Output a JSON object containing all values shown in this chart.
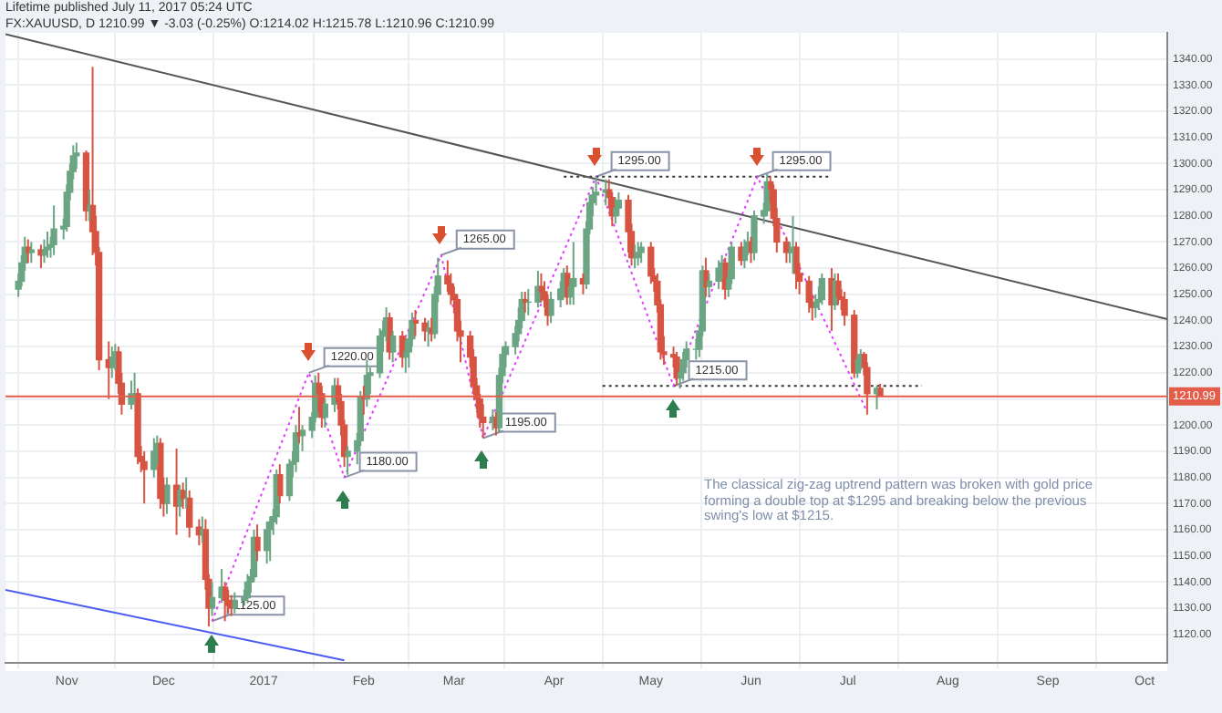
{
  "chart_data": {
    "type": "candlestick",
    "title": "Lifetime published July 11, 2017 05:24 UTC",
    "subtitle": "FX:XAUUSD, D  1210.99 ▼ -3.03 (-0.25%) O:1214.02 H:1215.78 L:1210.96 C:1210.99",
    "colors": [
      "#6ba583",
      "#6ba583",
      "#6ba583",
      "#d75442",
      "#6ba583",
      "#d75442",
      "#6ba583",
      "#6ba583",
      "#6ba583",
      "#6ba583",
      "#6ba583",
      "#6ba583",
      "#6ba583",
      "#6ba583",
      "#6ba583",
      "#d75442",
      "#6ba583",
      "#d75442",
      "#d75442",
      "#d75442",
      "#d75442",
      "#6ba583",
      "#6ba583",
      "#d75442",
      "#d75442",
      "#6ba583",
      "#6ba583",
      "#d75442",
      "#d75442",
      "#d75442",
      "#6ba583",
      "#6ba583",
      "#d75442",
      "#d75442",
      "#6ba583",
      "#d75442",
      "#6ba583",
      "#d75442",
      "#6ba583",
      "#d75442",
      "#d75442",
      "#6ba583",
      "#d75442",
      "#d75442",
      "#6ba583",
      "#6ba583",
      "#d75442",
      "#d75442",
      "#d75442",
      "#6ba583",
      "#6ba583",
      "#6ba583",
      "#6ba583",
      "#6ba583",
      "#d75442",
      "#6ba583",
      "#6ba583",
      "#6ba583",
      "#6ba583",
      "#d75442",
      "#6ba583",
      "#6ba583",
      "#6ba583",
      "#d75442",
      "#6ba583",
      "#6ba583",
      "#6ba583",
      "#d75442",
      "#d75442",
      "#6ba583",
      "#6ba583",
      "#d75442",
      "#d75442",
      "#d75442",
      "#6ba583",
      "#6ba583",
      "#6ba583",
      "#d75442",
      "#6ba583",
      "#6ba583",
      "#6ba583",
      "#6ba583",
      "#6ba583",
      "#d75442",
      "#6ba583",
      "#d75442",
      "#6ba583",
      "#6ba583",
      "#6ba583",
      "#d75442",
      "#d75442",
      "#6ba583",
      "#d75442",
      "#6ba583",
      "#6ba583",
      "#d75442",
      "#d75442",
      "#d75442",
      "#d75442",
      "#d75442",
      "#d75442",
      "#d75442",
      "#d75442",
      "#d75442",
      "#d75442",
      "#6ba583",
      "#d75442",
      "#6ba583",
      "#6ba583",
      "#6ba583",
      "#6ba583",
      "#6ba583",
      "#6ba583",
      "#d75442",
      "#6ba583",
      "#6ba583",
      "#d75442",
      "#d75442",
      "#d75442",
      "#6ba583",
      "#6ba583",
      "#6ba583",
      "#d75442",
      "#6ba583",
      "#6ba583",
      "#d75442",
      "#6ba583",
      "#6ba583",
      "#6ba583",
      "#6ba583",
      "#6ba583",
      "#d75442",
      "#d75442",
      "#6ba583",
      "#6ba583",
      "#d75442",
      "#d75442",
      "#6ba583",
      "#6ba583",
      "#6ba583",
      "#d75442",
      "#d75442",
      "#d75442",
      "#d75442",
      "#d75442",
      "#d75442",
      "#d75442",
      "#6ba583",
      "#6ba583",
      "#6ba583",
      "#6ba583",
      "#6ba583",
      "#6ba583",
      "#d75442",
      "#6ba583",
      "#6ba583",
      "#6ba583",
      "#d75442",
      "#6ba583",
      "#6ba583",
      "#d75442",
      "#6ba583",
      "#6ba583",
      "#d75442",
      "#6ba583",
      "#6ba583",
      "#6ba583",
      "#d75442",
      "#d75442",
      "#d75442",
      "#d75442",
      "#6ba583",
      "#6ba583",
      "#d75442",
      "#d75442",
      "#d75442",
      "#d75442",
      "#6ba583",
      "#6ba583",
      "#6ba583",
      "#d75442",
      "#6ba583",
      "#d75442",
      "#d75442",
      "#d75442",
      "#d75442",
      "#6ba583",
      "#6ba583",
      "#d75442",
      "#d75442",
      "#6ba583",
      "#d75442"
    ],
    "x": [
      "2016-10-17",
      "2016-10-18",
      "2016-10-19",
      "2016-10-20",
      "2016-10-21",
      "2016-10-24",
      "2016-10-25",
      "2016-10-26",
      "2016-10-27",
      "2016-10-28",
      "2016-10-31",
      "2016-11-01",
      "2016-11-02",
      "2016-11-03",
      "2016-11-04",
      "2016-11-07",
      "2016-11-08",
      "2016-11-09",
      "2016-11-10",
      "2016-11-11",
      "2016-11-14",
      "2016-11-15",
      "2016-11-16",
      "2016-11-17",
      "2016-11-18",
      "2016-11-21",
      "2016-11-22",
      "2016-11-23",
      "2016-11-24",
      "2016-11-25",
      "2016-11-28",
      "2016-11-29",
      "2016-11-30",
      "2016-12-01",
      "2016-12-02",
      "2016-12-05",
      "2016-12-06",
      "2016-12-07",
      "2016-12-08",
      "2016-12-09",
      "2016-12-12",
      "2016-12-13",
      "2016-12-14",
      "2016-12-15",
      "2016-12-16",
      "2016-12-19",
      "2016-12-20",
      "2016-12-21",
      "2016-12-22",
      "2016-12-23",
      "2016-12-26",
      "2016-12-27",
      "2016-12-28",
      "2016-12-29",
      "2016-12-30",
      "2017-01-02",
      "2017-01-03",
      "2017-01-04",
      "2017-01-05",
      "2017-01-06",
      "2017-01-09",
      "2017-01-10",
      "2017-01-11",
      "2017-01-12",
      "2017-01-13",
      "2017-01-16",
      "2017-01-17",
      "2017-01-18",
      "2017-01-19",
      "2017-01-20",
      "2017-01-23",
      "2017-01-24",
      "2017-01-25",
      "2017-01-26",
      "2017-01-27",
      "2017-01-30",
      "2017-01-31",
      "2017-02-01",
      "2017-02-02",
      "2017-02-03",
      "2017-02-06",
      "2017-02-07",
      "2017-02-08",
      "2017-02-09",
      "2017-02-10",
      "2017-02-13",
      "2017-02-14",
      "2017-02-15",
      "2017-02-16",
      "2017-02-17",
      "2017-02-20",
      "2017-02-21",
      "2017-02-22",
      "2017-02-23",
      "2017-02-24",
      "2017-02-27",
      "2017-02-28",
      "2017-03-01",
      "2017-03-02",
      "2017-03-03",
      "2017-03-06",
      "2017-03-07",
      "2017-03-08",
      "2017-03-09",
      "2017-03-10",
      "2017-03-13",
      "2017-03-14",
      "2017-03-15",
      "2017-03-16",
      "2017-03-17",
      "2017-03-20",
      "2017-03-21",
      "2017-03-22",
      "2017-03-23",
      "2017-03-24",
      "2017-03-27",
      "2017-03-28",
      "2017-03-29",
      "2017-03-30",
      "2017-03-31",
      "2017-04-03",
      "2017-04-04",
      "2017-04-05",
      "2017-04-06",
      "2017-04-07",
      "2017-04-10",
      "2017-04-11",
      "2017-04-12",
      "2017-04-13",
      "2017-04-14",
      "2017-04-17",
      "2017-04-18",
      "2017-04-19",
      "2017-04-20",
      "2017-04-21",
      "2017-04-24",
      "2017-04-25",
      "2017-04-26",
      "2017-04-27",
      "2017-04-28",
      "2017-05-01",
      "2017-05-02",
      "2017-05-03",
      "2017-05-04",
      "2017-05-05",
      "2017-05-08",
      "2017-05-09",
      "2017-05-10",
      "2017-05-11",
      "2017-05-12",
      "2017-05-15",
      "2017-05-16",
      "2017-05-17",
      "2017-05-18",
      "2017-05-19",
      "2017-05-22",
      "2017-05-23",
      "2017-05-24",
      "2017-05-25",
      "2017-05-26",
      "2017-05-29",
      "2017-05-30",
      "2017-05-31",
      "2017-06-01",
      "2017-06-02",
      "2017-06-05",
      "2017-06-06",
      "2017-06-07",
      "2017-06-08",
      "2017-06-09",
      "2017-06-12",
      "2017-06-13",
      "2017-06-14",
      "2017-06-15",
      "2017-06-16",
      "2017-06-19",
      "2017-06-20",
      "2017-06-21",
      "2017-06-22",
      "2017-06-23",
      "2017-06-26",
      "2017-06-27",
      "2017-06-28",
      "2017-06-29",
      "2017-06-30",
      "2017-07-03",
      "2017-07-04",
      "2017-07-05",
      "2017-07-06",
      "2017-07-07",
      "2017-07-10",
      "2017-07-11"
    ],
    "ohlc": [
      [
        1252,
        1258,
        1249,
        1255
      ],
      [
        1255,
        1265,
        1253,
        1262
      ],
      [
        1262,
        1272,
        1259,
        1268
      ],
      [
        1268,
        1271,
        1262,
        1266
      ],
      [
        1266,
        1270,
        1262,
        1267
      ],
      [
        1267,
        1269,
        1260,
        1265
      ],
      [
        1265,
        1271,
        1262,
        1267
      ],
      [
        1267,
        1274,
        1264,
        1268
      ],
      [
        1268,
        1272,
        1264,
        1269
      ],
      [
        1269,
        1284,
        1265,
        1275
      ],
      [
        1275,
        1279,
        1271,
        1276
      ],
      [
        1276,
        1292,
        1274,
        1289
      ],
      [
        1289,
        1300,
        1286,
        1297
      ],
      [
        1297,
        1307,
        1294,
        1303
      ],
      [
        1303,
        1308,
        1298,
        1304
      ],
      [
        1304,
        1305,
        1278,
        1282
      ],
      [
        1282,
        1290,
        1278,
        1284
      ],
      [
        1284,
        1337,
        1265,
        1274
      ],
      [
        1274,
        1280,
        1261,
        1266
      ],
      [
        1266,
        1268,
        1221,
        1225
      ],
      [
        1225,
        1232,
        1210,
        1222
      ],
      [
        1222,
        1230,
        1218,
        1226
      ],
      [
        1226,
        1231,
        1221,
        1228
      ],
      [
        1228,
        1230,
        1212,
        1216
      ],
      [
        1216,
        1220,
        1204,
        1208
      ],
      [
        1208,
        1217,
        1206,
        1212
      ],
      [
        1212,
        1220,
        1208,
        1212
      ],
      [
        1212,
        1214,
        1185,
        1188
      ],
      [
        1188,
        1192,
        1182,
        1186
      ],
      [
        1186,
        1190,
        1170,
        1183
      ],
      [
        1183,
        1195,
        1180,
        1190
      ],
      [
        1190,
        1196,
        1185,
        1193
      ],
      [
        1193,
        1195,
        1168,
        1172
      ],
      [
        1172,
        1180,
        1165,
        1170
      ],
      [
        1170,
        1180,
        1166,
        1177
      ],
      [
        1177,
        1191,
        1158,
        1169
      ],
      [
        1169,
        1177,
        1165,
        1175
      ],
      [
        1175,
        1178,
        1168,
        1172
      ],
      [
        1172,
        1180,
        1168,
        1172
      ],
      [
        1172,
        1175,
        1157,
        1161
      ],
      [
        1161,
        1164,
        1154,
        1158
      ],
      [
        1158,
        1165,
        1155,
        1160
      ],
      [
        1160,
        1164,
        1137,
        1141
      ],
      [
        1141,
        1143,
        1123,
        1130
      ],
      [
        1130,
        1140,
        1127,
        1134
      ],
      [
        1134,
        1145,
        1132,
        1138
      ],
      [
        1138,
        1140,
        1125,
        1133
      ],
      [
        1133,
        1137,
        1128,
        1131
      ],
      [
        1131,
        1135,
        1127,
        1130
      ],
      [
        1130,
        1136,
        1128,
        1133
      ],
      [
        1133,
        1137,
        1131,
        1134
      ],
      [
        1134,
        1143,
        1132,
        1140
      ],
      [
        1140,
        1145,
        1136,
        1142
      ],
      [
        1142,
        1160,
        1140,
        1157
      ],
      [
        1157,
        1162,
        1148,
        1152
      ],
      [
        1152,
        1163,
        1147,
        1160
      ],
      [
        1160,
        1165,
        1148,
        1163
      ],
      [
        1163,
        1168,
        1158,
        1165
      ],
      [
        1165,
        1183,
        1162,
        1181
      ],
      [
        1181,
        1185,
        1170,
        1173
      ],
      [
        1173,
        1187,
        1171,
        1185
      ],
      [
        1185,
        1190,
        1180,
        1186
      ],
      [
        1186,
        1200,
        1182,
        1197
      ],
      [
        1197,
        1207,
        1193,
        1196
      ],
      [
        1196,
        1200,
        1190,
        1198
      ],
      [
        1198,
        1205,
        1195,
        1203
      ],
      [
        1203,
        1219,
        1201,
        1216
      ],
      [
        1216,
        1220,
        1205,
        1212
      ],
      [
        1212,
        1215,
        1199,
        1203
      ],
      [
        1203,
        1210,
        1199,
        1208
      ],
      [
        1208,
        1218,
        1205,
        1215
      ],
      [
        1215,
        1218,
        1206,
        1209
      ],
      [
        1209,
        1212,
        1196,
        1200
      ],
      [
        1200,
        1202,
        1184,
        1188
      ],
      [
        1188,
        1192,
        1181,
        1190
      ],
      [
        1190,
        1197,
        1185,
        1194
      ],
      [
        1194,
        1213,
        1192,
        1211
      ],
      [
        1211,
        1215,
        1204,
        1210
      ],
      [
        1210,
        1225,
        1207,
        1219
      ],
      [
        1219,
        1222,
        1212,
        1220
      ],
      [
        1220,
        1237,
        1218,
        1234
      ],
      [
        1234,
        1240,
        1228,
        1236
      ],
      [
        1236,
        1245,
        1232,
        1241
      ],
      [
        1241,
        1243,
        1225,
        1228
      ],
      [
        1228,
        1236,
        1224,
        1234
      ],
      [
        1234,
        1236,
        1222,
        1226
      ],
      [
        1226,
        1232,
        1220,
        1228
      ],
      [
        1228,
        1236,
        1222,
        1233
      ],
      [
        1233,
        1243,
        1230,
        1240
      ],
      [
        1240,
        1244,
        1234,
        1239
      ],
      [
        1239,
        1241,
        1232,
        1236
      ],
      [
        1236,
        1240,
        1230,
        1237
      ],
      [
        1237,
        1241,
        1232,
        1235
      ],
      [
        1235,
        1253,
        1233,
        1250
      ],
      [
        1250,
        1264,
        1247,
        1257
      ],
      [
        1257,
        1263,
        1251,
        1254
      ],
      [
        1254,
        1258,
        1246,
        1250
      ],
      [
        1250,
        1253,
        1243,
        1248
      ],
      [
        1248,
        1250,
        1232,
        1236
      ],
      [
        1236,
        1240,
        1224,
        1234
      ],
      [
        1234,
        1236,
        1222,
        1226
      ],
      [
        1226,
        1229,
        1212,
        1215
      ],
      [
        1215,
        1218,
        1206,
        1210
      ],
      [
        1210,
        1212,
        1199,
        1203
      ],
      [
        1203,
        1208,
        1195,
        1201
      ],
      [
        1201,
        1206,
        1198,
        1203
      ],
      [
        1203,
        1205,
        1196,
        1199
      ],
      [
        1199,
        1222,
        1197,
        1219
      ],
      [
        1219,
        1230,
        1216,
        1227
      ],
      [
        1227,
        1232,
        1222,
        1230
      ],
      [
        1230,
        1238,
        1227,
        1235
      ],
      [
        1235,
        1245,
        1232,
        1240
      ],
      [
        1240,
        1251,
        1237,
        1248
      ],
      [
        1248,
        1251,
        1243,
        1247
      ],
      [
        1247,
        1252,
        1242,
        1247
      ],
      [
        1247,
        1259,
        1245,
        1253
      ],
      [
        1253,
        1258,
        1247,
        1251
      ],
      [
        1251,
        1255,
        1245,
        1248
      ],
      [
        1248,
        1250,
        1238,
        1242
      ],
      [
        1242,
        1251,
        1239,
        1248
      ],
      [
        1248,
        1255,
        1245,
        1252
      ],
      [
        1252,
        1260,
        1249,
        1258
      ],
      [
        1258,
        1261,
        1246,
        1249
      ],
      [
        1249,
        1256,
        1246,
        1253
      ],
      [
        1253,
        1270,
        1246,
        1256
      ],
      [
        1256,
        1258,
        1250,
        1254
      ],
      [
        1254,
        1278,
        1252,
        1275
      ],
      [
        1275,
        1288,
        1273,
        1285
      ],
      [
        1285,
        1291,
        1280,
        1288
      ],
      [
        1288,
        1295,
        1284,
        1289
      ],
      [
        1289,
        1294,
        1284,
        1290
      ],
      [
        1290,
        1294,
        1283,
        1287
      ],
      [
        1287,
        1289,
        1276,
        1280
      ],
      [
        1280,
        1287,
        1277,
        1283
      ],
      [
        1283,
        1289,
        1280,
        1286
      ],
      [
        1286,
        1288,
        1266,
        1274
      ],
      [
        1274,
        1277,
        1261,
        1264
      ],
      [
        1264,
        1269,
        1260,
        1264
      ],
      [
        1264,
        1270,
        1261,
        1266
      ],
      [
        1266,
        1270,
        1262,
        1268
      ],
      [
        1268,
        1270,
        1254,
        1257
      ],
      [
        1257,
        1260,
        1251,
        1255
      ],
      [
        1255,
        1258,
        1243,
        1246
      ],
      [
        1246,
        1248,
        1225,
        1228
      ],
      [
        1228,
        1234,
        1223,
        1227
      ],
      [
        1227,
        1230,
        1222,
        1226
      ],
      [
        1226,
        1228,
        1215,
        1218
      ],
      [
        1218,
        1222,
        1214,
        1220
      ],
      [
        1220,
        1228,
        1217,
        1225
      ],
      [
        1225,
        1232,
        1222,
        1229
      ],
      [
        1229,
        1233,
        1225,
        1229
      ],
      [
        1229,
        1238,
        1226,
        1236
      ],
      [
        1236,
        1261,
        1234,
        1259
      ],
      [
        1259,
        1264,
        1249,
        1253
      ],
      [
        1253,
        1258,
        1249,
        1255
      ],
      [
        1255,
        1263,
        1252,
        1260
      ],
      [
        1260,
        1265,
        1256,
        1262
      ],
      [
        1262,
        1264,
        1248,
        1252
      ],
      [
        1252,
        1259,
        1249,
        1256
      ],
      [
        1256,
        1270,
        1254,
        1268
      ],
      [
        1268,
        1270,
        1261,
        1263
      ],
      [
        1263,
        1271,
        1260,
        1268
      ],
      [
        1268,
        1274,
        1265,
        1270
      ],
      [
        1270,
        1272,
        1262,
        1266
      ],
      [
        1266,
        1282,
        1263,
        1280
      ],
      [
        1280,
        1285,
        1277,
        1282
      ],
      [
        1282,
        1296,
        1280,
        1293
      ],
      [
        1293,
        1295,
        1285,
        1290
      ],
      [
        1290,
        1292,
        1276,
        1279
      ],
      [
        1279,
        1283,
        1266,
        1270
      ],
      [
        1270,
        1272,
        1262,
        1266
      ],
      [
        1266,
        1270,
        1262,
        1266
      ],
      [
        1266,
        1280,
        1258,
        1268
      ],
      [
        1268,
        1270,
        1252,
        1258
      ],
      [
        1258,
        1262,
        1250,
        1255
      ],
      [
        1255,
        1257,
        1243,
        1247
      ],
      [
        1247,
        1250,
        1240,
        1245
      ],
      [
        1245,
        1250,
        1241,
        1247
      ],
      [
        1247,
        1253,
        1244,
        1248
      ],
      [
        1248,
        1258,
        1246,
        1256
      ],
      [
        1256,
        1260,
        1236,
        1246
      ],
      [
        1246,
        1258,
        1244,
        1255
      ],
      [
        1255,
        1258,
        1246,
        1249
      ],
      [
        1249,
        1252,
        1244,
        1248
      ],
      [
        1248,
        1251,
        1238,
        1242
      ],
      [
        1242,
        1244,
        1218,
        1220
      ],
      [
        1220,
        1227,
        1218,
        1225
      ],
      [
        1225,
        1229,
        1221,
        1227
      ],
      [
        1227,
        1228,
        1219,
        1222
      ],
      [
        1222,
        1224,
        1204,
        1212
      ],
      [
        1212,
        1215,
        1206,
        1214.02
      ],
      [
        1214.02,
        1215.78,
        1210.96,
        1210.99
      ]
    ],
    "series": [
      {
        "type": "line",
        "x": [
          "2016-10-13",
          "2017-10-08"
        ],
        "values": [
          1349.5,
          1240.5
        ],
        "color": "#555555",
        "line_style": "solid"
      },
      {
        "type": "line",
        "x": [
          "2016-10-13",
          "2017-01-26"
        ],
        "values": [
          1137,
          1110
        ],
        "color": "#4b5cf0",
        "line_style": "solid"
      },
      {
        "type": "line",
        "x": [
          "2016-12-16",
          "2017-01-15",
          "2017-01-26",
          "2017-02-25",
          "2017-03-10",
          "2017-04-14",
          "2017-05-08",
          "2017-06-03",
          "2017-07-07"
        ],
        "values": [
          1125,
          1220,
          1180,
          1265,
          1195,
          1295,
          1215,
          1295,
          1205
        ],
        "color": "#e040fb",
        "line_style": "dotted"
      },
      {
        "type": "line",
        "x": [
          "2017-04-04",
          "2017-06-25"
        ],
        "values": [
          1295,
          1295
        ],
        "color": "#333333",
        "line_style": "dotted"
      },
      {
        "type": "line",
        "x": [
          "2017-04-16",
          "2017-07-24"
        ],
        "values": [
          1215,
          1215
        ],
        "color": "#333333",
        "line_style": "dotted"
      }
    ],
    "marker": "none",
    "xlim": [
      "2016-10-13",
      "2017-10-08"
    ],
    "xticks": [
      {
        "value": "2016-11-01",
        "label": "Nov"
      },
      {
        "value": "2016-12-01",
        "label": "Dec"
      },
      {
        "value": "2017-01-01",
        "label": "2017"
      },
      {
        "value": "2017-02-01",
        "label": "Feb"
      },
      {
        "value": "2017-03-01",
        "label": "Mar"
      },
      {
        "value": "2017-04-01",
        "label": "Apr"
      },
      {
        "value": "2017-05-01",
        "label": "May"
      },
      {
        "value": "2017-06-01",
        "label": "Jun"
      },
      {
        "value": "2017-07-01",
        "label": "Jul"
      },
      {
        "value": "2017-08-01",
        "label": "Aug"
      },
      {
        "value": "2017-09-01",
        "label": "Sep"
      },
      {
        "value": "2017-10-01",
        "label": "Oct"
      }
    ],
    "ylim": [
      1109,
      1350
    ],
    "yticks": [
      {
        "value": 1120,
        "label": "1120.00"
      },
      {
        "value": 1130,
        "label": "1130.00"
      },
      {
        "value": 1140,
        "label": "1140.00"
      },
      {
        "value": 1150,
        "label": "1150.00"
      },
      {
        "value": 1160,
        "label": "1160.00"
      },
      {
        "value": 1170,
        "label": "1170.00"
      },
      {
        "value": 1180,
        "label": "1180.00"
      },
      {
        "value": 1190,
        "label": "1190.00"
      },
      {
        "value": 1200,
        "label": "1200.00"
      },
      {
        "value": 1210,
        "label": null
      },
      {
        "value": 1220,
        "label": "1220.00"
      },
      {
        "value": 1230,
        "label": "1230.00"
      },
      {
        "value": 1240,
        "label": "1240.00"
      },
      {
        "value": 1250,
        "label": "1250.00"
      },
      {
        "value": 1260,
        "label": "1260.00"
      },
      {
        "value": 1270,
        "label": "1270.00"
      },
      {
        "value": 1280,
        "label": "1280.00"
      },
      {
        "value": 1290,
        "label": "1290.00"
      },
      {
        "value": 1300,
        "label": "1300.00"
      },
      {
        "value": 1310,
        "label": "1310.00"
      },
      {
        "value": 1320,
        "label": "1320.00"
      },
      {
        "value": 1330,
        "label": "1330.00"
      },
      {
        "value": 1340,
        "label": "1340.00"
      }
    ],
    "grid": true,
    "ref_lines": [
      {
        "axis": "y",
        "value": 1210.99,
        "label": "1210.99",
        "color": "#e35d4a",
        "line_style": "solid"
      }
    ],
    "annotations": [
      {
        "text": "1125.00",
        "x": "2016-12-16",
        "y": 1125
      },
      {
        "text": "1220.00",
        "x": "2017-01-15",
        "y": 1220
      },
      {
        "text": "1180.00",
        "x": "2017-01-26",
        "y": 1180
      },
      {
        "text": "1265.00",
        "x": "2017-02-25",
        "y": 1265
      },
      {
        "text": "1195.00",
        "x": "2017-03-10",
        "y": 1195
      },
      {
        "text": "1295.00",
        "x": "2017-04-14",
        "y": 1295
      },
      {
        "text": "1215.00",
        "x": "2017-05-08",
        "y": 1215
      },
      {
        "text": "1295.00",
        "x": "2017-06-03",
        "y": 1295
      },
      "The classical zig-zag uptrend pattern was broken with gold price forming a double top at $1295 and breaking below the previous swing's low at $1215."
    ]
  }
}
